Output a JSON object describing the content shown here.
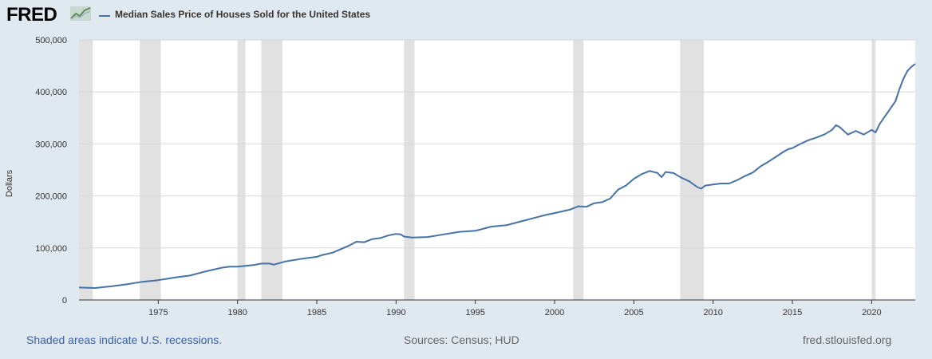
{
  "header": {
    "logo_text": "FRED",
    "logo_icon": "chart-line-icon",
    "legend_label": "Median Sales Price of Houses Sold for the United States"
  },
  "footer": {
    "recession_note": "Shaded areas indicate U.S. recessions.",
    "sources": "Sources: Census; HUD",
    "site": "fred.stlouisfed.org"
  },
  "colors": {
    "background": "#e1e9f0",
    "plot_background": "#ffffff",
    "series": "#4572a7",
    "recession": "#e1e1e1",
    "grid": "#d8d8d8"
  },
  "chart_data": {
    "type": "line",
    "title": "",
    "xlabel": "",
    "ylabel": "Dollars",
    "xlim": [
      1970.0,
      2022.75
    ],
    "ylim": [
      0,
      500000
    ],
    "grid": true,
    "legend": "top-left",
    "x_ticks": [
      1975,
      1980,
      1985,
      1990,
      1995,
      2000,
      2005,
      2010,
      2015,
      2020
    ],
    "x_tick_labels": [
      "1975",
      "1980",
      "1985",
      "1990",
      "1995",
      "2000",
      "2005",
      "2010",
      "2015",
      "2020"
    ],
    "y_ticks": [
      0,
      100000,
      200000,
      300000,
      400000,
      500000
    ],
    "y_tick_labels": [
      "0",
      "100,000",
      "200,000",
      "300,000",
      "400,000",
      "500,000"
    ],
    "recessions": [
      [
        1969.92,
        1970.87
      ],
      [
        1973.83,
        1975.17
      ],
      [
        1980.0,
        1980.5
      ],
      [
        1981.5,
        1982.83
      ],
      [
        1990.5,
        1991.17
      ],
      [
        2001.17,
        2001.83
      ],
      [
        2007.92,
        2009.42
      ],
      [
        2020.0,
        2020.25
      ]
    ],
    "series": [
      {
        "name": "Median Sales Price of Houses Sold for the United States",
        "x": [
          1970.0,
          1971.0,
          1972.0,
          1973.0,
          1974.0,
          1975.0,
          1976.0,
          1977.0,
          1978.0,
          1979.0,
          1979.5,
          1980.0,
          1981.0,
          1981.5,
          1982.0,
          1982.3,
          1983.0,
          1984.0,
          1985.0,
          1985.3,
          1986.0,
          1987.0,
          1987.5,
          1988.0,
          1988.5,
          1989.0,
          1989.5,
          1990.0,
          1990.3,
          1990.5,
          1991.0,
          1992.0,
          1993.0,
          1994.0,
          1995.0,
          1996.0,
          1997.0,
          1998.0,
          1999.0,
          1999.5,
          2000.0,
          2001.0,
          2001.5,
          2002.0,
          2002.5,
          2003.0,
          2003.5,
          2004.0,
          2004.5,
          2005.0,
          2005.5,
          2006.0,
          2006.5,
          2006.75,
          2007.0,
          2007.5,
          2008.0,
          2008.5,
          2009.0,
          2009.25,
          2009.5,
          2010.0,
          2010.5,
          2011.0,
          2011.5,
          2012.0,
          2012.5,
          2013.0,
          2013.5,
          2014.0,
          2014.5,
          2014.75,
          2015.0,
          2015.5,
          2016.0,
          2016.5,
          2017.0,
          2017.5,
          2017.75,
          2018.0,
          2018.5,
          2019.0,
          2019.5,
          2020.0,
          2020.25,
          2020.5,
          2021.0,
          2021.5,
          2021.75,
          2022.0,
          2022.25,
          2022.5,
          2022.75
        ],
        "y": [
          24000,
          23000,
          26000,
          30000,
          35000,
          38000,
          43000,
          47000,
          55000,
          62000,
          64000,
          64000,
          67000,
          70000,
          70000,
          68000,
          74000,
          79000,
          83000,
          86000,
          91000,
          104000,
          112000,
          111000,
          117000,
          119000,
          124000,
          127000,
          126000,
          122000,
          120000,
          121000,
          126000,
          131000,
          133000,
          141000,
          144000,
          152000,
          160000,
          164000,
          167000,
          174000,
          180000,
          179000,
          186000,
          188000,
          195000,
          212000,
          220000,
          233000,
          242000,
          248000,
          244000,
          236000,
          246000,
          244000,
          235000,
          228000,
          217000,
          214000,
          220000,
          222000,
          224000,
          224000,
          230000,
          238000,
          245000,
          257000,
          266000,
          276000,
          286000,
          290000,
          292000,
          300000,
          307000,
          312000,
          318000,
          327000,
          336000,
          332000,
          318000,
          325000,
          318000,
          327000,
          322000,
          338000,
          360000,
          382000,
          405000,
          425000,
          440000,
          448000,
          454000
        ]
      }
    ]
  }
}
